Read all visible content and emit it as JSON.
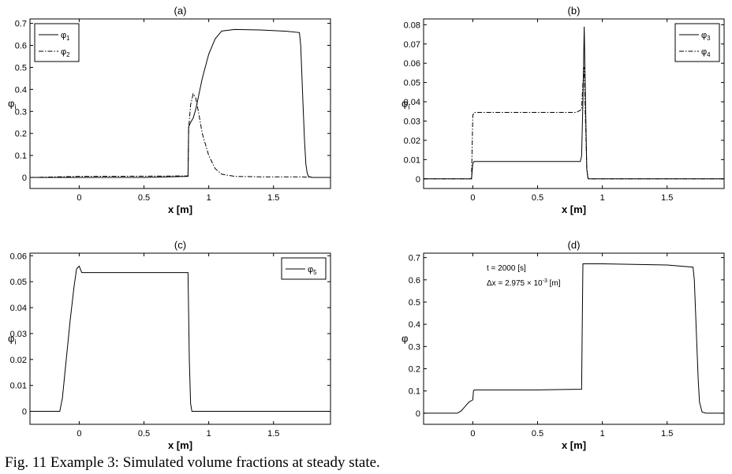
{
  "caption": "Fig. 11 Example 3: Simulated volume fractions at steady state.",
  "chart_data": [
    {
      "type": "line",
      "title": "(a)",
      "xlabel": "x [m]",
      "ylabel": "φi",
      "xlim": [
        -0.38,
        1.94
      ],
      "ylim": [
        -0.05,
        0.72
      ],
      "xticks": [
        0,
        0.5,
        1,
        1.5
      ],
      "yticks": [
        0,
        0.1,
        0.2,
        0.3,
        0.4,
        0.5,
        0.6,
        0.7
      ],
      "legend_position": "top-left",
      "series": [
        {
          "name": "φ1",
          "style": "solid",
          "x": [
            -0.38,
            0,
            0.5,
            0.84,
            0.845,
            0.86,
            0.88,
            0.9,
            0.95,
            1.0,
            1.05,
            1.1,
            1.2,
            1.4,
            1.6,
            1.7,
            1.71,
            1.72,
            1.73,
            1.74,
            1.75,
            1.76,
            1.77,
            1.8,
            1.94
          ],
          "y": [
            0,
            0,
            0,
            0.005,
            0.23,
            0.25,
            0.27,
            0.31,
            0.45,
            0.56,
            0.63,
            0.665,
            0.672,
            0.67,
            0.664,
            0.658,
            0.6,
            0.45,
            0.3,
            0.16,
            0.06,
            0.02,
            0.005,
            0,
            0
          ]
        },
        {
          "name": "φ2",
          "style": "dashdot",
          "x": [
            -0.38,
            0,
            0.5,
            0.84,
            0.845,
            0.86,
            0.88,
            0.9,
            0.92,
            0.95,
            1.0,
            1.05,
            1.1,
            1.2,
            1.4,
            1.6,
            1.7,
            1.75,
            1.8,
            1.94
          ],
          "y": [
            0,
            0.005,
            0.006,
            0.007,
            0.22,
            0.33,
            0.38,
            0.36,
            0.3,
            0.2,
            0.1,
            0.04,
            0.015,
            0.005,
            0.003,
            0.003,
            0.003,
            0.002,
            0,
            0
          ]
        }
      ]
    },
    {
      "type": "line",
      "title": "(b)",
      "xlabel": "x [m]",
      "ylabel": "φi",
      "xlim": [
        -0.38,
        1.94
      ],
      "ylim": [
        -0.005,
        0.083
      ],
      "xticks": [
        0,
        0.5,
        1,
        1.5
      ],
      "yticks": [
        0,
        0.01,
        0.02,
        0.03,
        0.04,
        0.05,
        0.06,
        0.07,
        0.08
      ],
      "legend_position": "top-right",
      "series": [
        {
          "name": "φ3",
          "style": "solid",
          "x": [
            -0.38,
            -0.01,
            0.0,
            0.01,
            0.5,
            0.83,
            0.84,
            0.85,
            0.86,
            0.87,
            0.88,
            0.89,
            0.9,
            1.94
          ],
          "y": [
            0,
            0,
            0.008,
            0.009,
            0.009,
            0.009,
            0.012,
            0.04,
            0.079,
            0.04,
            0.005,
            0,
            0,
            0
          ]
        },
        {
          "name": "φ4",
          "style": "dashdot",
          "x": [
            -0.38,
            -0.01,
            0.0,
            0.01,
            0.5,
            0.8,
            0.84,
            0.85,
            0.86,
            0.87,
            0.88,
            0.89,
            0.9,
            1.94
          ],
          "y": [
            0,
            0,
            0.033,
            0.0345,
            0.0345,
            0.0345,
            0.036,
            0.05,
            0.058,
            0.03,
            0.005,
            0,
            0,
            0
          ]
        }
      ]
    },
    {
      "type": "line",
      "title": "(c)",
      "xlabel": "x [m]",
      "ylabel": "φi",
      "xlim": [
        -0.38,
        1.94
      ],
      "ylim": [
        -0.005,
        0.061
      ],
      "xticks": [
        0,
        0.5,
        1,
        1.5
      ],
      "yticks": [
        0,
        0.01,
        0.02,
        0.03,
        0.04,
        0.05,
        0.06
      ],
      "legend_position": "top-right",
      "series": [
        {
          "name": "φ5",
          "style": "solid",
          "x": [
            -0.38,
            -0.15,
            -0.13,
            -0.1,
            -0.07,
            -0.04,
            -0.02,
            0.0,
            0.02,
            0.5,
            0.84,
            0.85,
            0.86,
            0.87,
            1.94
          ],
          "y": [
            0,
            0,
            0.005,
            0.02,
            0.035,
            0.048,
            0.055,
            0.056,
            0.0535,
            0.0535,
            0.0535,
            0.02,
            0.003,
            0,
            0
          ]
        }
      ]
    },
    {
      "type": "line",
      "title": "(d)",
      "xlabel": "x [m]",
      "ylabel": "φ",
      "xlim": [
        -0.38,
        1.94
      ],
      "ylim": [
        -0.05,
        0.72
      ],
      "xticks": [
        0,
        0.5,
        1,
        1.5
      ],
      "yticks": [
        0,
        0.1,
        0.2,
        0.3,
        0.4,
        0.5,
        0.6,
        0.7
      ],
      "annotations": [
        "t = 2000 [s]",
        "Δx = 2.975 × 10",
        "-3",
        " [m]"
      ],
      "series": [
        {
          "style": "solid",
          "x": [
            -0.38,
            -0.12,
            -0.09,
            -0.06,
            -0.03,
            0.0,
            0.005,
            0.01,
            0.5,
            0.84,
            0.845,
            0.85,
            1.0,
            1.5,
            1.7,
            1.71,
            1.72,
            1.73,
            1.74,
            1.75,
            1.77,
            1.8,
            1.94
          ],
          "y": [
            0,
            0,
            0.01,
            0.03,
            0.05,
            0.06,
            0.1,
            0.105,
            0.105,
            0.108,
            0.4,
            0.672,
            0.672,
            0.667,
            0.657,
            0.6,
            0.45,
            0.3,
            0.15,
            0.05,
            0.005,
            0,
            0
          ]
        }
      ]
    }
  ]
}
